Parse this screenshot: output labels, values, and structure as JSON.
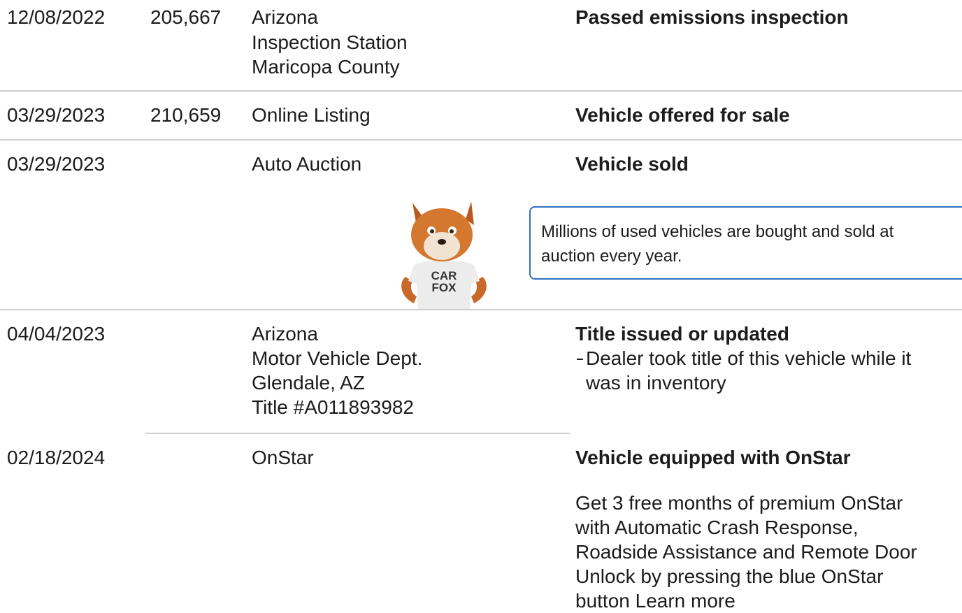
{
  "rows": [
    {
      "date": "12/08/2022",
      "mileage": "205,667",
      "source": [
        "Arizona",
        "Inspection Station",
        "Maricopa County"
      ],
      "comment": {
        "title": "Passed emissions inspection"
      }
    },
    {
      "date": "03/29/2023",
      "mileage": "210,659",
      "source": [
        "Online Listing"
      ],
      "comment": {
        "title": "Vehicle offered for sale"
      }
    },
    {
      "date": "03/29/2023",
      "source": [
        "Auto Auction"
      ],
      "comment": {
        "title": "Vehicle sold"
      }
    },
    {
      "date": "04/04/2023",
      "source": [
        "Arizona",
        "Motor Vehicle Dept.",
        "Glendale, AZ",
        "Title #A011893982"
      ],
      "comment": {
        "title": "Title issued or updated",
        "detail": [
          "Dealer took title of this vehicle while it",
          "was in inventory"
        ]
      }
    },
    {
      "date": "02/18/2024",
      "source": [
        "OnStar"
      ],
      "comment": {
        "title": "Vehicle equipped with OnStar",
        "text": [
          "Get 3 free months of premium OnStar",
          "with Automatic Crash Response,",
          "Roadside Assistance and Remote Door",
          "Unlock by pressing the blue OnStar",
          "button Learn more"
        ]
      }
    }
  ],
  "tip": {
    "text": [
      "Millions of used vehicles are bought and sold at",
      "auction every year."
    ],
    "mascot_shirt": [
      "CAR",
      "FOX"
    ]
  }
}
